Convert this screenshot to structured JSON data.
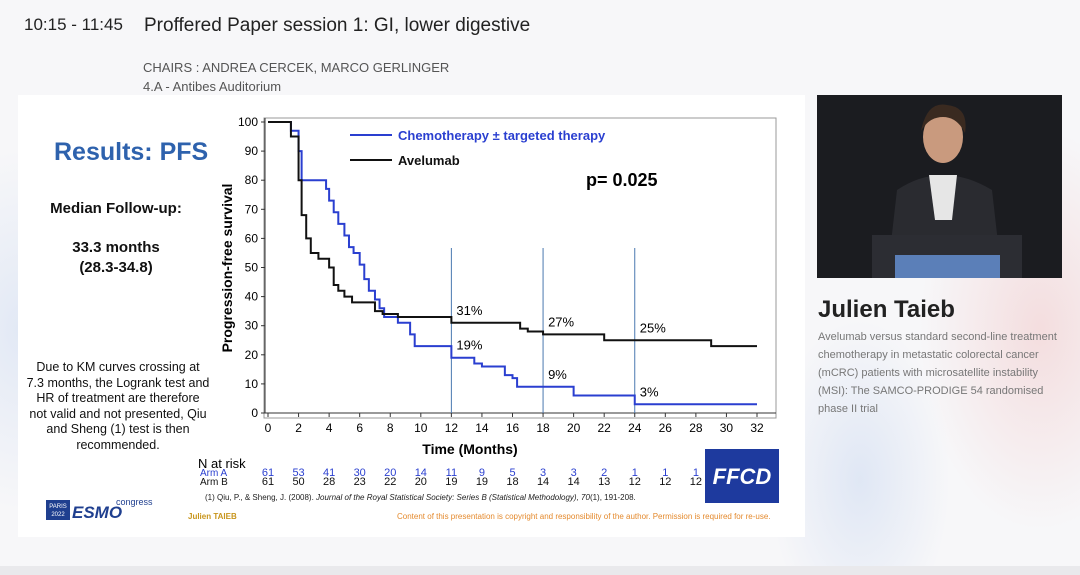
{
  "header": {
    "time": "10:15 - 11:45",
    "title": "Proffered Paper session 1: GI, lower digestive",
    "chairs": "CHAIRS : ANDREA CERCEK, MARCO GERLINGER",
    "room": "4.A - Antibes Auditorium"
  },
  "slide": {
    "title": "Results: PFS",
    "follow_up_label": "Median Follow-up:",
    "follow_up_value": "33.3 months",
    "follow_up_range": "(28.3-34.8)",
    "note": "Due to KM curves crossing at 7.3 months, the Logrank test and HR of treatment are therefore not valid and not presented, Qiu and Sheng (1) test is then recommended.",
    "risk_table": {
      "title": "N at risk",
      "rows": [
        {
          "name": "Arm A",
          "values": [
            61,
            53,
            41,
            30,
            20,
            14,
            11,
            9,
            5,
            3,
            3,
            2,
            1,
            1,
            1
          ]
        },
        {
          "name": "Arm B",
          "values": [
            61,
            50,
            28,
            23,
            22,
            20,
            19,
            19,
            18,
            14,
            14,
            13,
            12,
            12,
            12
          ]
        }
      ]
    },
    "reference": [
      "(1) Qiu, P., & Sheng, J. (2008). ",
      "Journal of the Royal Statistical Society: Series B (Statistical Methodology), 70",
      "(1), 191-208."
    ],
    "presenter": "Julien TAIEB",
    "copyright": "Content of this presentation is copyright and responsibility of the author. Permission is required for re-use.",
    "logos": {
      "city": "PARIS",
      "year": "2022",
      "esmo": "ESMO",
      "congress": "congress",
      "ffcd": "FFCD"
    }
  },
  "chart_data": {
    "type": "line",
    "step": true,
    "xlabel": "Time (Months)",
    "ylabel": "Progression-free survival",
    "p_value": "p= 0.025",
    "xlim": [
      0,
      32
    ],
    "ylim": [
      0,
      100
    ],
    "xticks": [
      0,
      2,
      4,
      6,
      8,
      10,
      12,
      14,
      16,
      18,
      20,
      22,
      24,
      26,
      28,
      30,
      32
    ],
    "yticks": [
      0,
      10,
      20,
      30,
      40,
      50,
      60,
      70,
      80,
      90,
      100
    ],
    "reference_lines_x": [
      12,
      18,
      24
    ],
    "series": [
      {
        "name": "Chemotherapy  ± targeted therapy",
        "color": "#2a3fd0",
        "x": [
          0,
          1.5,
          1.5,
          2,
          2,
          2.2,
          2.2,
          3.8,
          3.8,
          4,
          4,
          4.3,
          4.3,
          4.6,
          4.6,
          5,
          5,
          5.3,
          5.3,
          5.6,
          5.6,
          6,
          6,
          6.3,
          6.3,
          6.6,
          6.6,
          7,
          7,
          7.3,
          7.3,
          7.6,
          7.6,
          8.5,
          8.5,
          9.3,
          9.3,
          9.6,
          9.6,
          12,
          12,
          13.5,
          13.5,
          14,
          14,
          15.5,
          15.5,
          16,
          16,
          16.3,
          16.3,
          20,
          20,
          24,
          24,
          32
        ],
        "values": [
          100,
          100,
          97,
          97,
          90,
          90,
          80,
          80,
          77,
          77,
          73,
          73,
          69,
          69,
          65,
          65,
          61,
          61,
          57,
          57,
          55,
          55,
          51,
          51,
          46,
          46,
          42,
          42,
          39,
          39,
          36,
          36,
          33,
          33,
          31,
          31,
          27,
          27,
          23,
          23,
          19,
          19,
          17,
          17,
          16,
          16,
          13,
          13,
          12,
          12,
          9,
          9,
          6,
          6,
          3,
          3
        ]
      },
      {
        "name": "Avelumab",
        "color": "#111111",
        "x": [
          0,
          1.5,
          1.5,
          2,
          2,
          2.2,
          2.2,
          2.5,
          2.5,
          2.8,
          2.8,
          3.3,
          3.3,
          4,
          4,
          4.3,
          4.3,
          4.6,
          4.6,
          5,
          5,
          5.5,
          5.5,
          7,
          7,
          7.5,
          7.5,
          8.5,
          8.5,
          12,
          12,
          16.5,
          16.5,
          17,
          17,
          18,
          18,
          22,
          22,
          29,
          29,
          32
        ],
        "values": [
          100,
          100,
          95,
          95,
          80,
          80,
          68,
          68,
          60,
          60,
          55,
          55,
          53,
          53,
          50,
          50,
          44,
          44,
          42,
          42,
          40,
          40,
          38,
          38,
          35,
          35,
          34,
          34,
          33,
          33,
          31,
          31,
          29,
          29,
          28,
          28,
          27,
          27,
          25,
          25,
          23,
          23
        ]
      }
    ],
    "annotations": [
      {
        "text": "31%",
        "x": 12,
        "y": 31
      },
      {
        "text": "19%",
        "x": 12,
        "y": 19
      },
      {
        "text": "27%",
        "x": 18,
        "y": 27
      },
      {
        "text": "9%",
        "x": 18,
        "y": 9
      },
      {
        "text": "25%",
        "x": 24,
        "y": 25
      },
      {
        "text": "3%",
        "x": 24,
        "y": 3
      }
    ]
  },
  "speaker": {
    "name": "Julien Taieb",
    "talk": "Avelumab versus standard second-line treatment chemotherapy in metastatic colorectal cancer (mCRC) patients with microsatellite instability (MSI): The SAMCO-PRODIGE 54 randomised phase II trial"
  }
}
